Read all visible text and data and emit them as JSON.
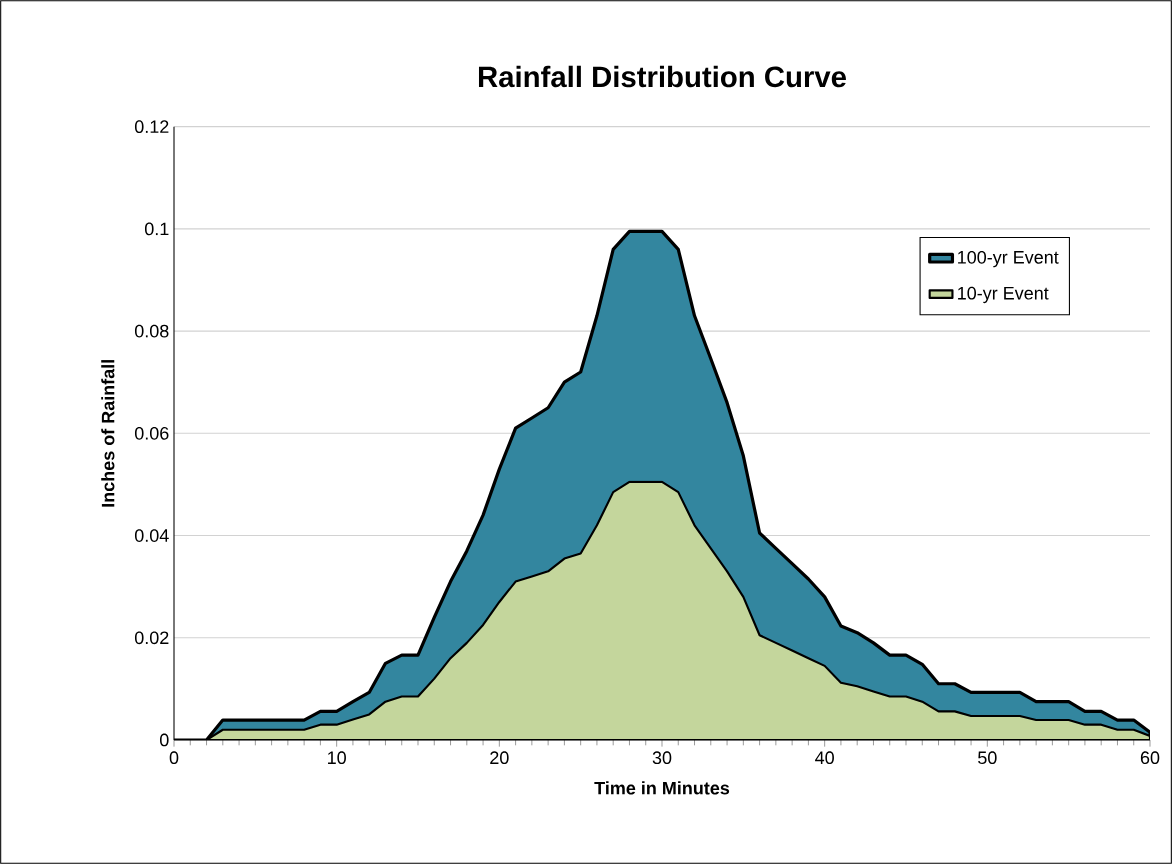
{
  "chart_data": {
    "type": "area",
    "title": "Rainfall Distribution Curve",
    "xlabel": "Time in Minutes",
    "ylabel": "Inches of Rainfall",
    "x": [
      0,
      1,
      2,
      3,
      4,
      5,
      6,
      7,
      8,
      9,
      10,
      11,
      12,
      13,
      14,
      15,
      16,
      17,
      18,
      19,
      20,
      21,
      22,
      23,
      24,
      25,
      26,
      27,
      28,
      29,
      30,
      31,
      32,
      33,
      34,
      35,
      36,
      37,
      38,
      39,
      40,
      41,
      42,
      43,
      44,
      45,
      46,
      47,
      48,
      49,
      50,
      51,
      52,
      53,
      54,
      55,
      56,
      57,
      58,
      59,
      60
    ],
    "series": [
      {
        "name": "100-yr Event",
        "color": "#33869f",
        "values": [
          0,
          0,
          0,
          0.0039,
          0.0039,
          0.0039,
          0.0039,
          0.0039,
          0.0039,
          0.0056,
          0.0056,
          0.0075,
          0.0093,
          0.015,
          0.0166,
          0.0166,
          0.024,
          0.031,
          0.037,
          0.044,
          0.053,
          0.061,
          0.063,
          0.065,
          0.07,
          0.072,
          0.083,
          0.096,
          0.0995,
          0.0995,
          0.0995,
          0.096,
          0.083,
          0.0746,
          0.066,
          0.0556,
          0.0405,
          0.0375,
          0.0345,
          0.0315,
          0.028,
          0.0223,
          0.021,
          0.019,
          0.0166,
          0.0166,
          0.0148,
          0.011,
          0.011,
          0.0093,
          0.0093,
          0.0093,
          0.0093,
          0.0075,
          0.0075,
          0.0075,
          0.0056,
          0.0056,
          0.0039,
          0.0039,
          0.0015
        ]
      },
      {
        "name": "10-yr Event",
        "color": "#c4d69c",
        "values": [
          0,
          0,
          0,
          0.002,
          0.002,
          0.002,
          0.002,
          0.002,
          0.002,
          0.003,
          0.003,
          0.004,
          0.005,
          0.0075,
          0.0085,
          0.0085,
          0.012,
          0.016,
          0.019,
          0.0225,
          0.027,
          0.031,
          0.032,
          0.033,
          0.0355,
          0.0365,
          0.042,
          0.0485,
          0.0505,
          0.0505,
          0.0505,
          0.0485,
          0.042,
          0.0375,
          0.033,
          0.028,
          0.0205,
          0.019,
          0.0175,
          0.016,
          0.0145,
          0.0112,
          0.0105,
          0.0095,
          0.0085,
          0.0085,
          0.0075,
          0.0056,
          0.0056,
          0.0047,
          0.0047,
          0.0047,
          0.0047,
          0.0039,
          0.0039,
          0.0039,
          0.003,
          0.003,
          0.002,
          0.002,
          0.0008
        ]
      }
    ],
    "xlim": [
      0,
      60
    ],
    "xticks": [
      0,
      10,
      20,
      30,
      40,
      50,
      60
    ],
    "ylim": [
      0,
      0.12
    ],
    "yticks": [
      0,
      0.02,
      0.04,
      0.06,
      0.08,
      0.1,
      0.12
    ],
    "grid": "y",
    "legend": "top right"
  }
}
